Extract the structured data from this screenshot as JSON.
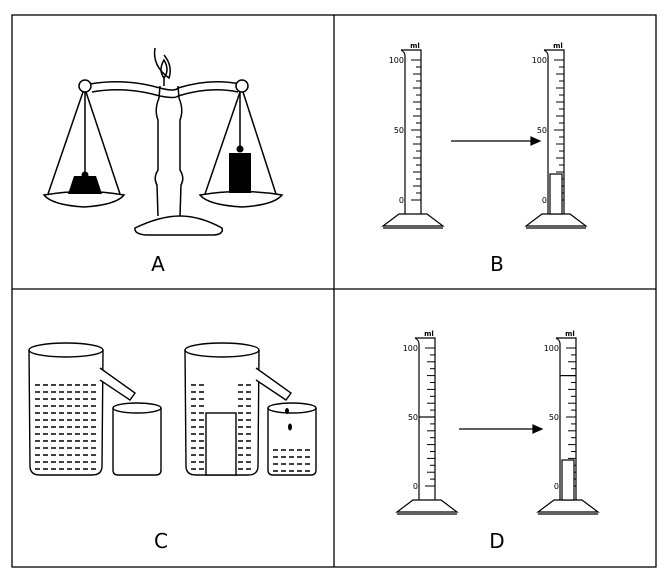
{
  "panels": [
    {
      "id": "A",
      "label": "A"
    },
    {
      "id": "B",
      "label": "B"
    },
    {
      "id": "C",
      "label": "C"
    },
    {
      "id": "D",
      "label": "D"
    }
  ],
  "cylinder": {
    "unit": "ml",
    "tick_labels": [
      "100",
      "50",
      "0"
    ]
  },
  "colors": {
    "ink": "#000000",
    "background": "#ffffff"
  }
}
